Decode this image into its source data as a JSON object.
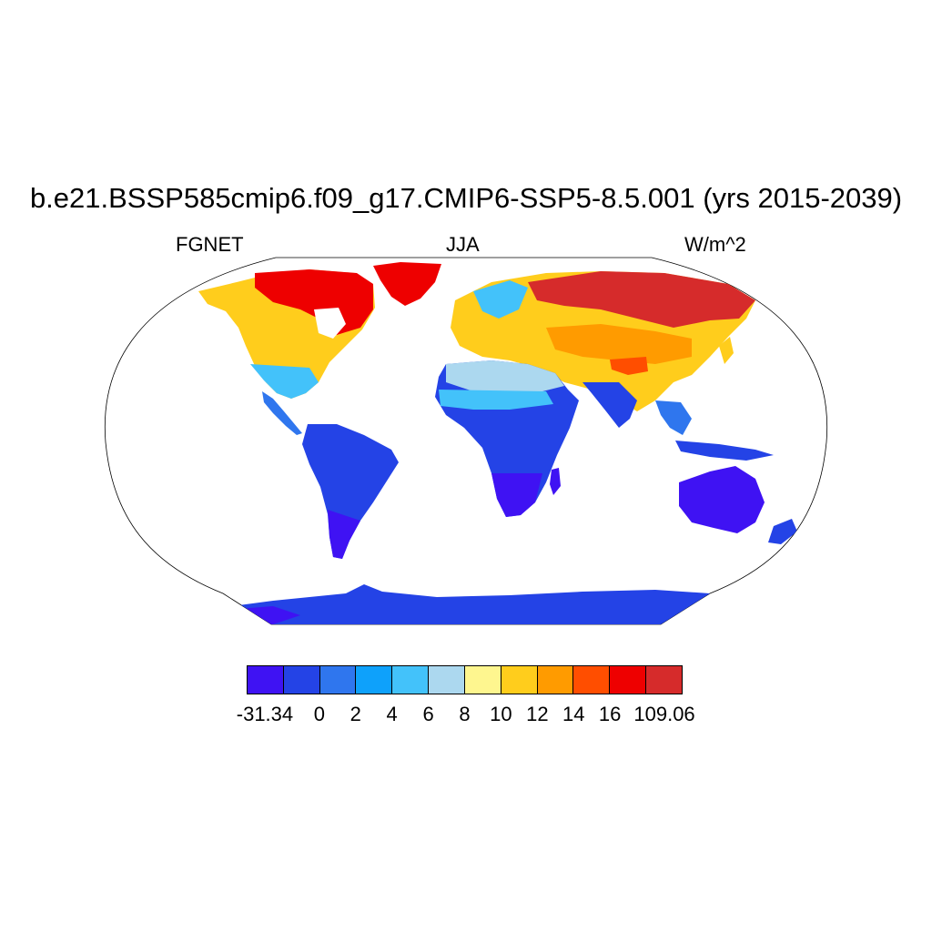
{
  "title": "b.e21.BSSP585cmip6.f09_g17.CMIP6-SSP5-8.5.001 (yrs 2015-2039)",
  "left_label": "FGNET",
  "center_label": "JJA",
  "right_label": "W/m^2",
  "colorbar": {
    "colors": [
      "#3f12f3",
      "#2443e6",
      "#2f76ee",
      "#0ea1fb",
      "#43c2fa",
      "#acd8ef",
      "#fef68f",
      "#ffcd1c",
      "#ff9b00",
      "#ff4e00",
      "#ee0000",
      "#d62b2b"
    ],
    "tick_labels": [
      "-31.34",
      "0",
      "2",
      "4",
      "6",
      "8",
      "10",
      "12",
      "14",
      "16",
      "109.06"
    ]
  }
}
